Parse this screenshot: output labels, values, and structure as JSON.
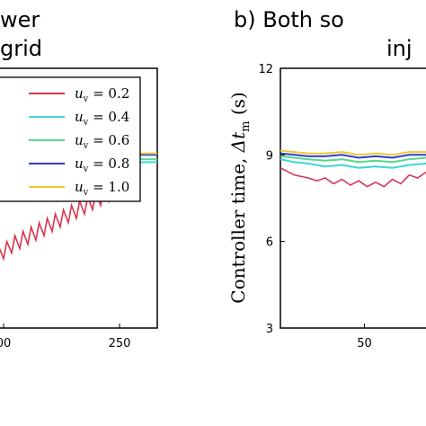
{
  "chart_data": [
    {
      "type": "line",
      "title_lines": [
        "wer",
        "grid"
      ],
      "xlabel": "",
      "ylabel": "",
      "x_tick_labels": [
        "00",
        "250"
      ],
      "ylim": [
        3,
        12
      ],
      "legend": {
        "placement": "top-left",
        "entries": [
          {
            "symbol": "u",
            "sub": "v",
            "rest": " = 0.2",
            "color": "#d9354f"
          },
          {
            "symbol": "u",
            "sub": "v",
            "rest": " = 0.4",
            "color": "#3ad6d9"
          },
          {
            "symbol": "u",
            "sub": "v",
            "rest": " = 0.6",
            "color": "#53d98c"
          },
          {
            "symbol": "u",
            "sub": "v",
            "rest": " = 0.8",
            "color": "#2b3fd0"
          },
          {
            "symbol": "u",
            "sub": "v",
            "rest": " = 1.0",
            "color": "#f0c832"
          }
        ]
      },
      "series": [
        {
          "key": "0.2",
          "color": "#d9354f",
          "x": [
            0,
            0.05,
            0.07,
            0.1,
            0.12,
            0.15,
            0.17,
            0.2,
            0.22,
            0.25,
            0.27,
            0.3,
            0.32,
            0.35,
            0.37,
            0.4,
            0.42,
            0.45,
            0.47,
            0.5,
            0.52,
            0.55,
            0.57,
            0.6,
            0.62,
            0.65,
            0.67,
            0.7,
            0.72,
            0.75,
            0.77,
            0.8
          ],
          "y": [
            6.1,
            5.4,
            6.0,
            5.6,
            6.2,
            5.75,
            6.35,
            5.9,
            6.5,
            6.05,
            6.65,
            6.2,
            6.8,
            6.35,
            6.95,
            6.5,
            7.1,
            6.65,
            7.25,
            6.8,
            7.4,
            6.95,
            7.55,
            7.1,
            7.7,
            7.25,
            7.85,
            7.4,
            8.0,
            7.55,
            8.15,
            7.7
          ]
        },
        {
          "key": "0.4",
          "color": "#3ad6d9",
          "x": [
            0,
            0.05,
            1
          ],
          "y": [
            8.7,
            8.7,
            8.75
          ]
        },
        {
          "key": "0.6",
          "color": "#53d98c",
          "x": [
            0,
            0.05,
            1
          ],
          "y": [
            8.85,
            8.85,
            8.85
          ]
        },
        {
          "key": "0.8",
          "color": "#2b3fd0",
          "x": [
            0,
            0.05,
            1
          ],
          "y": [
            9.0,
            9.0,
            9.0
          ]
        },
        {
          "key": "1.0",
          "color": "#f0c832",
          "x": [
            0,
            0.05,
            1
          ],
          "y": [
            9.05,
            9.05,
            9.05
          ]
        }
      ]
    },
    {
      "type": "line",
      "title_lines": [
        "b) Both so",
        "inj"
      ],
      "xlabel": "",
      "ylabel": {
        "prefix": "Controller time, ",
        "symbol": "Δt",
        "sub": "m",
        "suffix": " (s)"
      },
      "y_tick_labels": [
        "12",
        "9",
        "6",
        "3"
      ],
      "y_ticks": [
        12,
        9,
        6,
        3
      ],
      "x_tick_labels": [
        "50"
      ],
      "ylim": [
        3,
        12
      ],
      "grid": false,
      "series": [
        {
          "key": "0.2",
          "color": "#d9354f",
          "x": [
            20,
            25,
            30,
            33,
            36,
            39,
            42,
            45,
            48,
            51,
            54,
            57,
            60,
            63,
            66,
            69,
            72
          ],
          "y": [
            8.55,
            8.3,
            8.2,
            8.1,
            8.2,
            8.0,
            8.15,
            7.95,
            8.1,
            7.9,
            8.05,
            7.9,
            8.15,
            8.0,
            8.3,
            8.2,
            8.4
          ]
        },
        {
          "key": "0.4",
          "color": "#3ad6d9",
          "x": [
            20,
            25,
            30,
            36,
            42,
            48,
            54,
            60,
            66,
            72
          ],
          "y": [
            8.85,
            8.75,
            8.7,
            8.6,
            8.65,
            8.55,
            8.6,
            8.55,
            8.65,
            8.7
          ]
        },
        {
          "key": "0.6",
          "color": "#53d98c",
          "x": [
            20,
            25,
            30,
            36,
            42,
            48,
            54,
            60,
            66,
            72
          ],
          "y": [
            8.95,
            8.9,
            8.85,
            8.8,
            8.85,
            8.75,
            8.8,
            8.75,
            8.85,
            8.9
          ]
        },
        {
          "key": "0.8",
          "color": "#2b3fd0",
          "x": [
            20,
            25,
            30,
            36,
            42,
            48,
            54,
            60,
            66,
            72
          ],
          "y": [
            9.05,
            9.0,
            8.95,
            8.95,
            9.0,
            8.9,
            8.95,
            8.9,
            9.0,
            9.0
          ]
        },
        {
          "key": "1.0",
          "color": "#f0c832",
          "x": [
            20,
            25,
            30,
            36,
            42,
            48,
            54,
            60,
            66,
            72
          ],
          "y": [
            9.15,
            9.1,
            9.05,
            9.05,
            9.1,
            9.0,
            9.05,
            9.0,
            9.1,
            9.1
          ]
        }
      ]
    }
  ]
}
